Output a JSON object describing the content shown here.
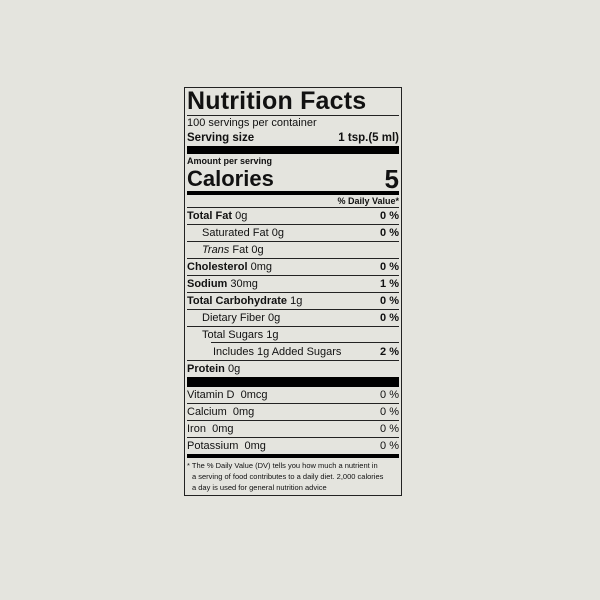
{
  "title": "Nutrition Facts",
  "servings": "100 servings per container",
  "serving_size": {
    "label": "Serving size",
    "value": "1 tsp.(5 ml)"
  },
  "amount_per_serving": "Amount per serving",
  "calories": {
    "label": "Calories",
    "value": "5"
  },
  "daily_value_header": "% Daily Value*",
  "nutrients": [
    {
      "label": "Total Fat",
      "amount": "0g",
      "dv": "0 %"
    },
    {
      "label": "Saturated Fat",
      "amount": "0g",
      "dv": "0 %"
    },
    {
      "label": "Trans",
      "label2": "Fat",
      "amount": "0g",
      "dv": ""
    },
    {
      "label": "Cholesterol",
      "amount": "0mg",
      "dv": "0 %"
    },
    {
      "label": "Sodium",
      "amount": "30mg",
      "dv": "1 %"
    },
    {
      "label": "Total Carbohydrate",
      "amount": "1g",
      "dv": "0 %"
    },
    {
      "label": "Dietary Fiber",
      "amount": "0g",
      "dv": "0 %"
    },
    {
      "label": "Total Sugars",
      "amount": "1g",
      "dv": ""
    },
    {
      "label": "Includes 1g Added Sugars",
      "amount": "",
      "dv": "2 %"
    },
    {
      "label": "Protein",
      "amount": "0g",
      "dv": ""
    }
  ],
  "vitamins": [
    {
      "label": "Vitamin D",
      "amount": "0mcg",
      "dv": "0 %"
    },
    {
      "label": "Calcium",
      "amount": "0mg",
      "dv": "0 %"
    },
    {
      "label": "Iron",
      "amount": "0mg",
      "dv": "0 %"
    },
    {
      "label": "Potassium",
      "amount": "0mg",
      "dv": "0 %"
    }
  ],
  "footnote": [
    "* The % Daily Value (DV) tells you how much a nutrient in",
    "a serving of food contributes to a daily diet. 2,000 calories",
    "a day is used for general nutrition advice"
  ]
}
